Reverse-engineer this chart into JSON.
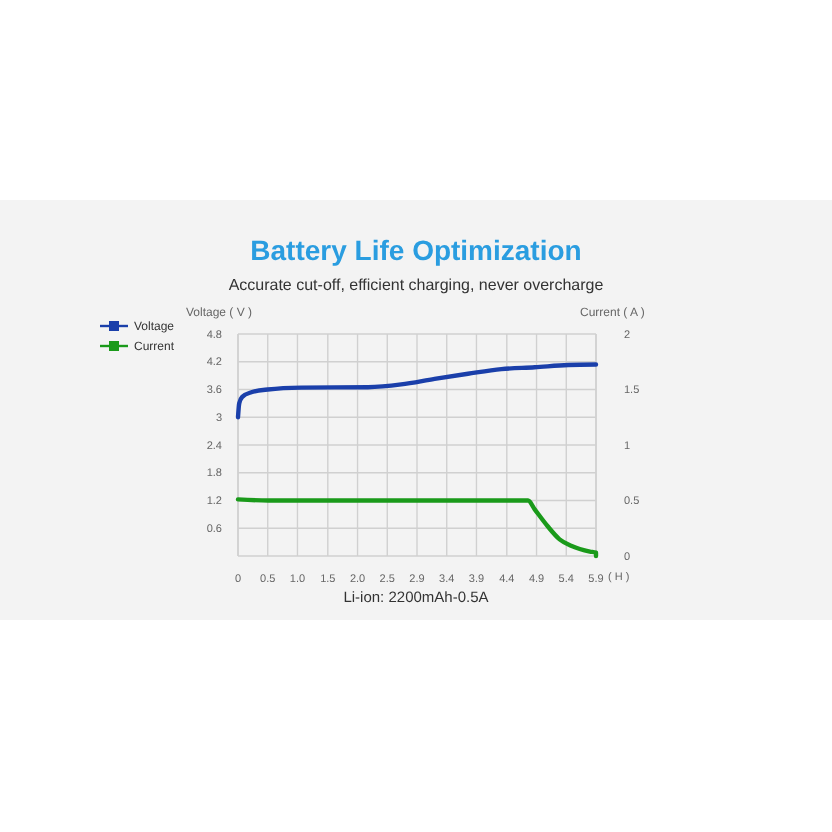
{
  "chart_data": {
    "type": "line",
    "title": "Battery Life Optimization",
    "subtitle": "Accurate cut-off, efficient charging, never overcharge",
    "ylabel": "Voltage ( V )",
    "y2label": "Current ( A )",
    "xlabel": "( H )",
    "annotations": [
      "Li-ion: 2200mAh-0.5A"
    ],
    "series": [
      {
        "name": "Voltage",
        "color": "#1a3faa",
        "x": [
          0,
          0.02,
          0.07,
          0.22,
          0.49,
          1.04,
          2.14,
          2.69,
          3.24,
          3.79,
          4.34,
          4.89,
          5.44,
          5.9
        ],
        "values": [
          3.0,
          3.3,
          3.44,
          3.54,
          3.6,
          3.64,
          3.65,
          3.71,
          3.83,
          3.94,
          4.04,
          4.08,
          4.13,
          4.14
        ]
      },
      {
        "name": "Current",
        "color": "#1a9a1a",
        "axis": "y2",
        "x": [
          0,
          0.5,
          4.78,
          4.89,
          5.1,
          5.3,
          5.5,
          5.8,
          5.9,
          5.9
        ],
        "values": [
          0.51,
          0.5,
          0.5,
          0.42,
          0.27,
          0.15,
          0.09,
          0.04,
          0.03,
          0
        ]
      }
    ],
    "xlim": [
      0,
      5.9
    ],
    "xticks": [
      0,
      {
        "value": 0.49,
        "label": "0.5"
      },
      {
        "value": 0.98,
        "label": "1.0"
      },
      {
        "value": 1.48,
        "label": "1.5"
      },
      {
        "value": 1.97,
        "label": "2.0"
      },
      {
        "value": 2.46,
        "label": "2.5"
      },
      {
        "value": 2.95,
        "label": "2.9"
      },
      {
        "value": 3.44,
        "label": "3.4"
      },
      {
        "value": 3.93,
        "label": "3.9"
      },
      {
        "value": 4.43,
        "label": "4.4"
      },
      {
        "value": 4.92,
        "label": "4.9"
      },
      {
        "value": 5.41,
        "label": "5.4"
      },
      5.9
    ],
    "ylim": [
      0,
      4.8
    ],
    "yticks": [
      0.6,
      1.2,
      1.8,
      2.4,
      3,
      3.6,
      4.2,
      4.8
    ],
    "y2lim": [
      0,
      2
    ],
    "y2ticks": [
      0,
      0.5,
      1,
      1.5,
      2
    ],
    "grid": true,
    "legend": "top left",
    "line_style": "solid"
  }
}
